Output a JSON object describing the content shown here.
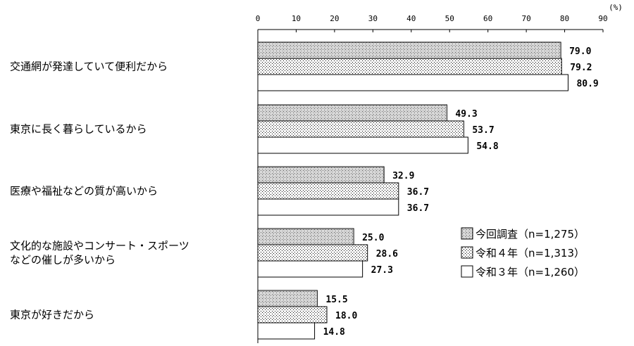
{
  "chart_data": {
    "type": "bar",
    "orientation": "horizontal",
    "unit_label": "(%)",
    "xlim": [
      0,
      90
    ],
    "x_ticks": [
      "0",
      "10",
      "20",
      "30",
      "40",
      "50",
      "60",
      "70",
      "80",
      "90"
    ],
    "categories": [
      [
        "交通網が発達していて便利だから"
      ],
      [
        "東京に長く暮らしているから"
      ],
      [
        "医療や福祉などの質が高いから"
      ],
      [
        "文化的な施設やコンサート・スポーツ",
        "などの催しが多いから"
      ],
      [
        "東京が好きだから"
      ]
    ],
    "series": [
      {
        "name": "今回調査（n=1,275）",
        "pattern": "dense-dots",
        "values": [
          79.0,
          49.3,
          32.9,
          25.0,
          15.5
        ]
      },
      {
        "name": "令和４年（n=1,313）",
        "pattern": "sparse-dots",
        "values": [
          79.2,
          53.7,
          36.7,
          28.6,
          18.0
        ]
      },
      {
        "name": "令和３年（n=1,260）",
        "pattern": "white",
        "values": [
          80.9,
          54.8,
          36.7,
          27.3,
          14.8
        ]
      }
    ],
    "value_labels": [
      [
        "79.0",
        "49.3",
        "32.9",
        "25.0",
        "15.5"
      ],
      [
        "79.2",
        "53.7",
        "36.7",
        "28.6",
        "18.0"
      ],
      [
        "80.9",
        "54.8",
        "36.7",
        "27.3",
        "14.8"
      ]
    ],
    "legend_position": "right",
    "grid": false,
    "bar_color": "#ffffff",
    "stroke_color": "#000000"
  }
}
